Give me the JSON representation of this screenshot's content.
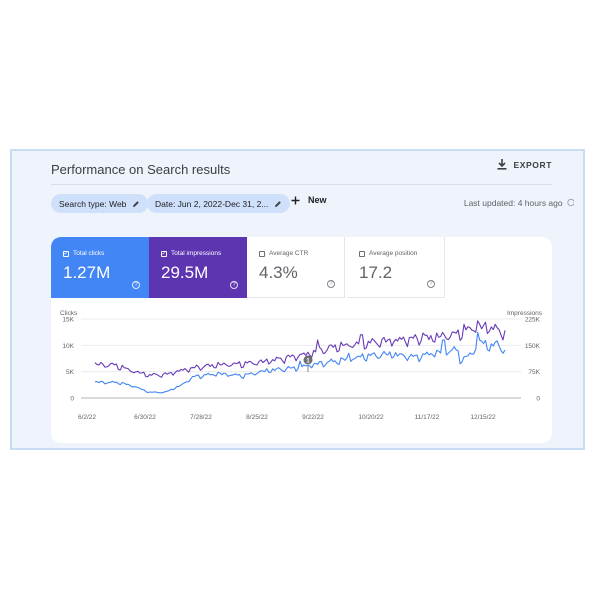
{
  "header": {
    "title": "Performance on Search results",
    "export_label": "EXPORT"
  },
  "filters": {
    "chips": [
      {
        "label": "Search type: Web"
      },
      {
        "label": "Date: Jun 2, 2022-Dec 31, 2..."
      }
    ],
    "new_label": "New",
    "last_updated": "Last updated: 4 hours ago"
  },
  "metrics": [
    {
      "label": "Total clicks",
      "value": "1.27M",
      "checked": true,
      "color": "#4285f4"
    },
    {
      "label": "Total impressions",
      "value": "29.5M",
      "checked": true,
      "color": "#5e35b1"
    },
    {
      "label": "Average CTR",
      "value": "4.3%",
      "checked": false,
      "color": "#ffffff"
    },
    {
      "label": "Average position",
      "value": "17.2",
      "checked": false,
      "color": "#ffffff"
    }
  ],
  "chart_data": {
    "type": "line",
    "x": [
      "6/2/22",
      "6/30/22",
      "7/28/22",
      "8/25/22",
      "9/22/22",
      "10/20/22",
      "11/17/22",
      "12/15/22"
    ],
    "left_axis": {
      "label": "Clicks",
      "ticks": [
        "15K",
        "10K",
        "5K",
        "0"
      ],
      "ylim": [
        0,
        15000
      ]
    },
    "right_axis": {
      "label": "Impressions",
      "ticks": [
        "225K",
        "150K",
        "75K",
        "0"
      ],
      "ylim": [
        0,
        225000
      ]
    },
    "annotation": "1",
    "series": [
      {
        "name": "Total clicks",
        "color": "#4285f4",
        "axis": "left",
        "anchors": [
          [
            0,
            3000
          ],
          [
            0.06,
            2900
          ],
          [
            0.1,
            2100
          ],
          [
            0.13,
            1100
          ],
          [
            0.17,
            1050
          ],
          [
            0.21,
            2400
          ],
          [
            0.24,
            4000
          ],
          [
            0.3,
            4600
          ],
          [
            0.36,
            4200
          ],
          [
            0.42,
            5200
          ],
          [
            0.48,
            5600
          ],
          [
            0.54,
            6400
          ],
          [
            0.6,
            7100
          ],
          [
            0.66,
            7900
          ],
          [
            0.72,
            8300
          ],
          [
            0.78,
            7700
          ],
          [
            0.84,
            8700
          ],
          [
            0.88,
            9100
          ],
          [
            0.9,
            7300
          ],
          [
            0.92,
            8500
          ],
          [
            0.94,
            10800
          ],
          [
            0.96,
            9700
          ],
          [
            0.98,
            10200
          ],
          [
            1.0,
            9000
          ]
        ],
        "spikes": [
          [
            0.5,
            7000
          ],
          [
            0.62,
            8500
          ],
          [
            0.85,
            11000
          ],
          [
            0.89,
            6500
          ],
          [
            0.935,
            12500
          ]
        ]
      },
      {
        "name": "Total impressions",
        "color": "#673ab7",
        "axis": "right",
        "anchors": [
          [
            0,
            95000
          ],
          [
            0.05,
            93000
          ],
          [
            0.09,
            77000
          ],
          [
            0.13,
            65000
          ],
          [
            0.17,
            66000
          ],
          [
            0.21,
            78000
          ],
          [
            0.25,
            87000
          ],
          [
            0.3,
            94000
          ],
          [
            0.35,
            96000
          ],
          [
            0.4,
            101000
          ],
          [
            0.46,
            112000
          ],
          [
            0.52,
            125000
          ],
          [
            0.58,
            144000
          ],
          [
            0.64,
            153000
          ],
          [
            0.7,
            160000
          ],
          [
            0.76,
            166000
          ],
          [
            0.82,
            171000
          ],
          [
            0.88,
            180000
          ],
          [
            0.92,
            198000
          ],
          [
            0.96,
            202000
          ],
          [
            1.0,
            185000
          ]
        ],
        "spikes": [
          [
            0.545,
            165000
          ],
          [
            0.65,
            180000
          ],
          [
            0.8,
            185000
          ],
          [
            0.9,
            210000
          ],
          [
            0.935,
            220000
          ]
        ]
      }
    ]
  }
}
